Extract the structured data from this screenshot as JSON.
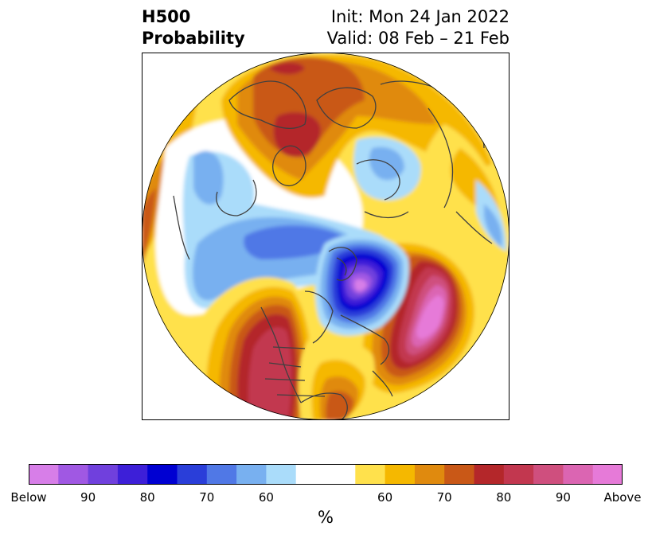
{
  "title": {
    "left_line1": "H500",
    "left_line2": "Probability",
    "right_line1": "Init: Mon 24 Jan 2022",
    "right_line2": "Valid: 08 Feb – 21 Feb"
  },
  "colorbar": {
    "unit": "%",
    "tick_labels": [
      "Below",
      "90",
      "80",
      "70",
      "60",
      "60",
      "70",
      "80",
      "90",
      "Above"
    ],
    "below_colors": [
      "#d77ee8",
      "#a058e3",
      "#7040dd",
      "#3d1fd8",
      "#0000d2",
      "#2a3ed9",
      "#5078e6",
      "#78b0f0",
      "#aadcfa"
    ],
    "neutral_color": "#ffffff",
    "above_colors": [
      "#ffe14c",
      "#f5b800",
      "#e08a0e",
      "#c95817",
      "#b4272a",
      "#c2374f",
      "#cf4f7e",
      "#db65b2",
      "#e67ad8"
    ]
  },
  "map": {
    "projection": "north-polar-stereographic",
    "field": "500 hPa height probability"
  }
}
